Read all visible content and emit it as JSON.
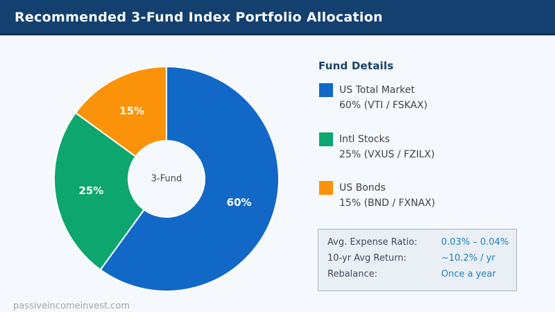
{
  "header": {
    "title": "Recommended 3-Fund Index Portfolio Allocation"
  },
  "chart_data": {
    "type": "pie",
    "subtype": "donut",
    "title": "Recommended 3-Fund Index Portfolio Allocation",
    "center_label": "3-Fund",
    "start_angle_deg": 0,
    "direction": "clockwise",
    "inner_radius_ratio": 0.34,
    "categories": [
      "US Total Market",
      "Intl Stocks",
      "US Bonds"
    ],
    "values": [
      60,
      25,
      15
    ],
    "segments": [
      {
        "label": "US Total Market",
        "tickers": "VTI / FSKAX",
        "value_pct": 60,
        "slice_label": "60%",
        "color": "#1268C7"
      },
      {
        "label": "Intl Stocks",
        "tickers": "VXUS / FZILX",
        "value_pct": 25,
        "slice_label": "25%",
        "color": "#0DA66F"
      },
      {
        "label": "US Bonds",
        "tickers": "BND / FXNAX",
        "value_pct": 15,
        "slice_label": "15%",
        "color": "#FA930A"
      }
    ],
    "legend_position": "right"
  },
  "legend": {
    "title": "Fund Details",
    "items": [
      {
        "name": "US Total Market",
        "detail": "60%  (VTI / FSKAX)",
        "color": "#1268C7"
      },
      {
        "name": "Intl Stocks",
        "detail": "25%  (VXUS / FZILX)",
        "color": "#0DA66F"
      },
      {
        "name": "US Bonds",
        "detail": "15%  (BND / FXNAX)",
        "color": "#FA930A"
      }
    ]
  },
  "info_box": {
    "rows": [
      {
        "label": "Avg. Expense Ratio:",
        "value": "0.03% – 0.04%"
      },
      {
        "label": "10-yr Avg Return:",
        "value": "~10.2% / yr"
      },
      {
        "label": "Rebalance:",
        "value": "Once a year"
      }
    ]
  },
  "footer": {
    "text": "passiveincomeinvest.com"
  },
  "colors": {
    "header_bg": "#13406F",
    "header_border": "#0C2F53",
    "page_bg": "#F5F8FC",
    "accent_value": "#1F80B8",
    "text_dark": "#37434F",
    "legend_heading": "#17406B",
    "infobox_bg": "#E9EFF5",
    "infobox_border": "#A9B6C4",
    "footer_text": "#9EA7B2",
    "slice_label": "#FFFFFF",
    "center_label_color": "#3A4754",
    "slice_stroke": "#FFFFFF"
  }
}
